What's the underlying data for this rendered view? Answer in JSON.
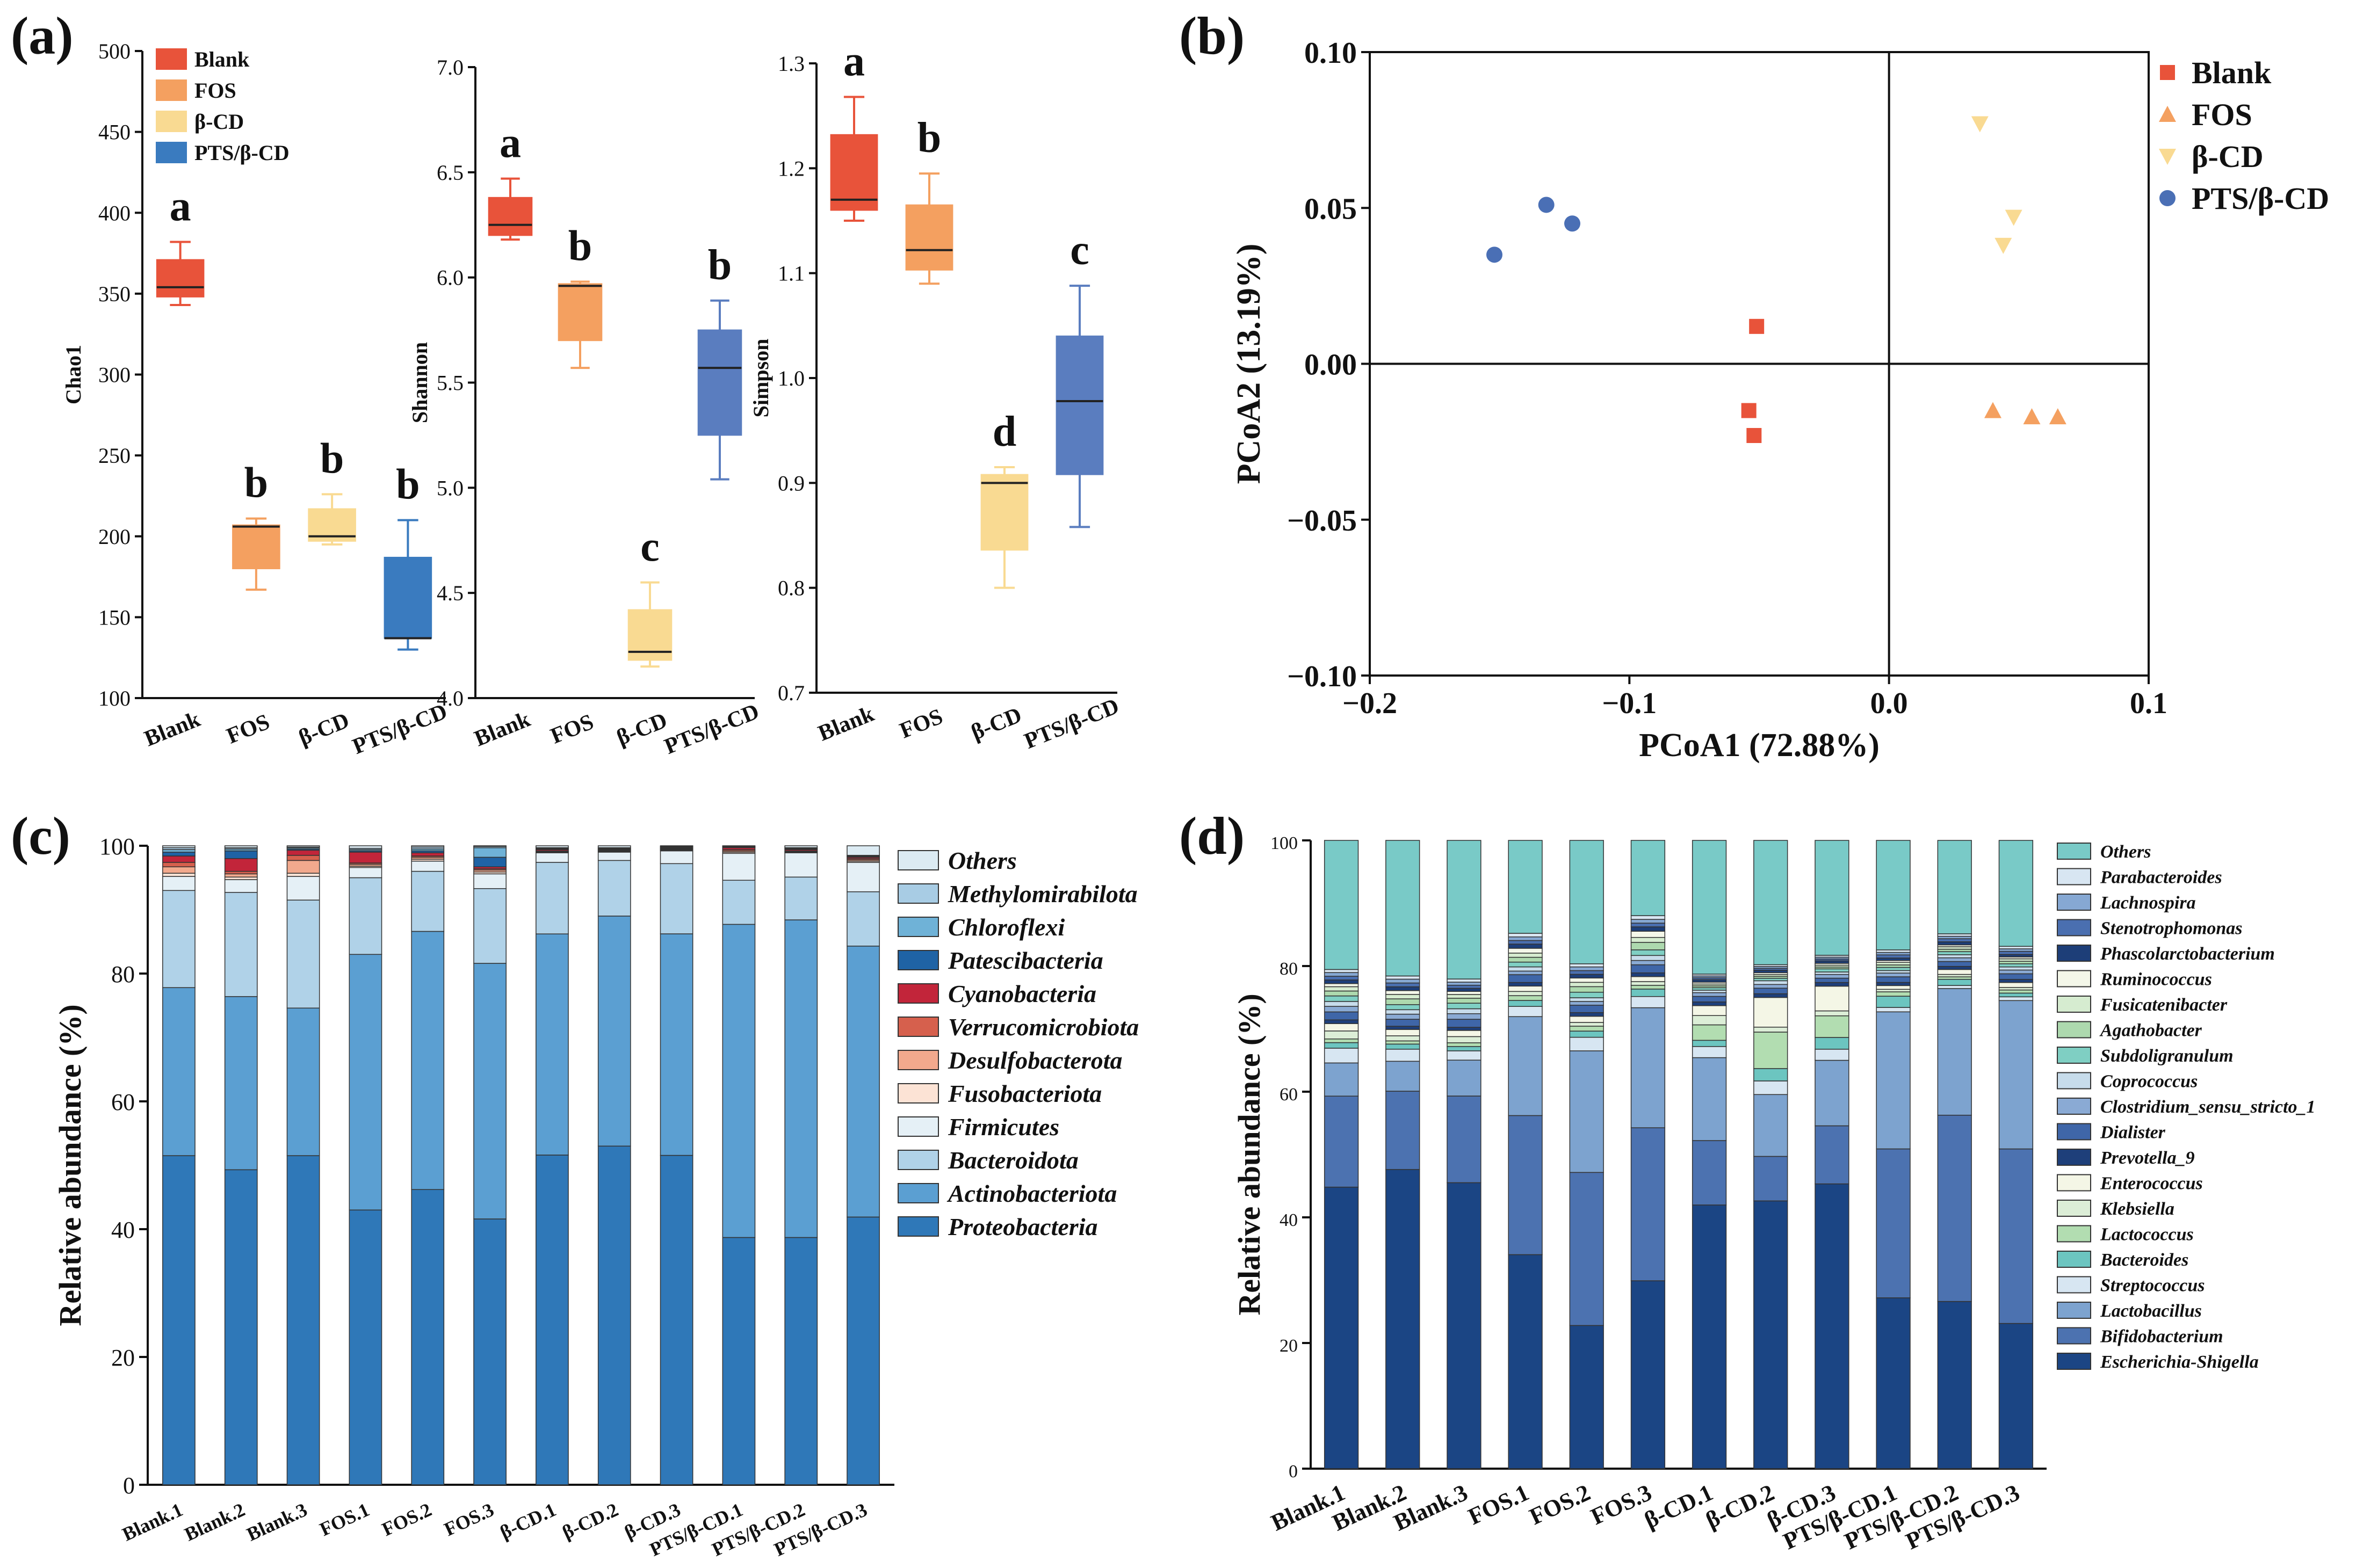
{
  "panel_labels": [
    "(a)",
    "(b)",
    "(c)",
    "(d)"
  ],
  "colors": {
    "Blank": "#E8533A",
    "FOS": "#F4A060",
    "b_CD": "#F9DA92",
    "PTS": "#3A7BBF",
    "PTS_shannon": "#5A7DBF"
  },
  "chart_data": [
    {
      "id": "a",
      "type": "box",
      "title": "(a)",
      "groups": [
        "Blank",
        "FOS",
        "β-CD",
        "PTS/β-CD"
      ],
      "legend": [
        "Blank",
        "FOS",
        "β-CD",
        "PTS/β-CD"
      ],
      "subplots": [
        {
          "ylabel": "Chao1",
          "ylim": [
            100,
            500
          ],
          "yticks": [
            100,
            150,
            200,
            250,
            300,
            350,
            400,
            450,
            500
          ],
          "boxes": [
            {
              "group": "Blank",
              "min": 343,
              "q1": 348,
              "median": 354,
              "q3": 371,
              "max": 382,
              "letter": "a"
            },
            {
              "group": "FOS",
              "min": 167,
              "q1": 180,
              "median": 206,
              "q3": 207,
              "max": 211,
              "letter": "b"
            },
            {
              "group": "β-CD",
              "min": 195,
              "q1": 197,
              "median": 200,
              "q3": 217,
              "max": 226,
              "letter": "b"
            },
            {
              "group": "PTS/β-CD",
              "min": 130,
              "q1": 137,
              "median": 137,
              "q3": 187,
              "max": 210,
              "letter": "b"
            }
          ]
        },
        {
          "ylabel": "Shannon",
          "ylim": [
            4.0,
            7.0
          ],
          "yticks": [
            "4.0",
            "4.5",
            "5.0",
            "5.5",
            "6.0",
            "6.5",
            "7.0"
          ],
          "boxes": [
            {
              "group": "Blank",
              "min": 6.18,
              "q1": 6.2,
              "median": 6.25,
              "q3": 6.38,
              "max": 6.47,
              "letter": "a"
            },
            {
              "group": "FOS",
              "min": 5.57,
              "q1": 5.7,
              "median": 5.96,
              "q3": 5.97,
              "max": 5.98,
              "letter": "b"
            },
            {
              "group": "β-CD",
              "min": 4.15,
              "q1": 4.18,
              "median": 4.22,
              "q3": 4.42,
              "max": 4.55,
              "letter": "c"
            },
            {
              "group": "PTS/β-CD",
              "min": 5.04,
              "q1": 5.25,
              "median": 5.57,
              "q3": 5.75,
              "max": 5.89,
              "letter": "b"
            }
          ]
        },
        {
          "ylabel": "Simpson",
          "ylim": [
            0.7,
            1.3
          ],
          "yticks": [
            "0.7",
            "0.8",
            "0.9",
            "1.0",
            "1.1",
            "1.2",
            "1.3"
          ],
          "boxes": [
            {
              "group": "Blank",
              "min": 1.15,
              "q1": 1.16,
              "median": 1.17,
              "q3": 1.232,
              "max": 1.268,
              "letter": "a"
            },
            {
              "group": "FOS",
              "min": 1.09,
              "q1": 1.103,
              "median": 1.122,
              "q3": 1.165,
              "max": 1.195,
              "letter": "b"
            },
            {
              "group": "β-CD",
              "min": 0.8,
              "q1": 0.836,
              "median": 0.9,
              "q3": 0.908,
              "max": 0.915,
              "letter": "d"
            },
            {
              "group": "PTS/β-CD",
              "min": 0.858,
              "q1": 0.908,
              "median": 0.978,
              "q3": 1.04,
              "max": 1.088,
              "letter": "c"
            }
          ]
        }
      ]
    },
    {
      "id": "b",
      "type": "scatter",
      "title": "(b)",
      "xlabel": "PCoA1 (72.88%)",
      "ylabel": "PCoA2 (13.19%)",
      "xlim": [
        -0.2,
        0.1
      ],
      "ylim": [
        -0.1,
        0.1
      ],
      "xticks": [
        -0.2,
        -0.1,
        0.0,
        0.1
      ],
      "xtick_labels": [
        "−0.2",
        "−0.1",
        "0.0",
        "0.1"
      ],
      "yticks": [
        -0.1,
        -0.05,
        0.0,
        0.05,
        0.1
      ],
      "ytick_labels": [
        "−0.10",
        "−0.05",
        "0.00",
        "0.05",
        "0.10"
      ],
      "legend": [
        "Blank",
        "FOS",
        "β-CD",
        "PTS/β-CD"
      ],
      "series": [
        {
          "name": "Blank",
          "marker": "square",
          "points": [
            [
              -0.051,
              0.012
            ],
            [
              -0.054,
              -0.015
            ],
            [
              -0.052,
              -0.023
            ]
          ]
        },
        {
          "name": "FOS",
          "marker": "triangle-up",
          "points": [
            [
              0.04,
              -0.015
            ],
            [
              0.055,
              -0.017
            ],
            [
              0.065,
              -0.017
            ]
          ]
        },
        {
          "name": "β-CD",
          "marker": "triangle-down",
          "points": [
            [
              0.035,
              0.077
            ],
            [
              0.048,
              0.047
            ],
            [
              0.044,
              0.038
            ]
          ]
        },
        {
          "name": "PTS/β-CD",
          "marker": "circle",
          "points": [
            [
              -0.152,
              0.035
            ],
            [
              -0.132,
              0.051
            ],
            [
              -0.122,
              0.045
            ]
          ]
        }
      ]
    },
    {
      "id": "c",
      "type": "stacked-bar",
      "title": "(c)",
      "ylabel": "Relative abundance (%)",
      "ylim": [
        0,
        100
      ],
      "yticks": [
        0,
        20,
        40,
        60,
        80,
        100
      ],
      "categories": [
        "Blank.1",
        "Blank.2",
        "Blank.3",
        "FOS.1",
        "FOS.2",
        "FOS.3",
        "β-CD.1",
        "β-CD.2",
        "β-CD.3",
        "PTS/β-CD.1",
        "PTS/β-CD.2",
        "PTS/β-CD.3"
      ],
      "series": [
        {
          "name": "Proteobacteria",
          "color": "#2F78B8",
          "values": [
            51.5,
            49.3,
            51.5,
            43,
            46.2,
            41.6,
            51.6,
            53,
            51.6,
            38.7,
            38.7,
            41.9
          ]
        },
        {
          "name": "Actinobacteriota",
          "color": "#5B9FD2",
          "values": [
            26.3,
            27.1,
            23.1,
            40,
            40.4,
            40,
            34.6,
            36,
            34.7,
            49,
            49.7,
            42.4
          ]
        },
        {
          "name": "Bacteroidota",
          "color": "#B0D2E8",
          "values": [
            15.2,
            16.3,
            16.9,
            12,
            9.4,
            11.7,
            11.2,
            8.7,
            11,
            6.9,
            6.7,
            8.5
          ]
        },
        {
          "name": "Firmicutes",
          "color": "#E5F0F6",
          "values": [
            2.2,
            2,
            3.7,
            1.6,
            1.6,
            2.3,
            1.5,
            1.3,
            2,
            4.2,
            3.8,
            4.6
          ]
        },
        {
          "name": "Fusobacteriota",
          "color": "#FCE3D5",
          "values": [
            0.5,
            0.4,
            0.5,
            0.2,
            0.3,
            0.3,
            0.1,
            0.1,
            0.1,
            0.2,
            0.1,
            0.2
          ]
        },
        {
          "name": "Desulfobacterota",
          "color": "#F2A98D",
          "values": [
            1,
            0.5,
            2,
            0.3,
            0.3,
            0.3,
            0.1,
            0.1,
            0.1,
            0.2,
            0.1,
            0.2
          ]
        },
        {
          "name": "Verrucomicrobiota",
          "color": "#D6604D",
          "values": [
            0.7,
            0.4,
            0.8,
            0.2,
            0.2,
            0.2,
            0.1,
            0.1,
            0.1,
            0.2,
            0.1,
            0.2
          ]
        },
        {
          "name": "Cyanobacteria",
          "color": "#C2253A",
          "values": [
            1,
            2,
            0.8,
            1.7,
            0.5,
            0.3,
            0.2,
            0.1,
            0.1,
            0.3,
            0.2,
            0.2
          ]
        },
        {
          "name": "Patescibacteria",
          "color": "#1F63A5",
          "values": [
            0.6,
            1.2,
            0.2,
            0.2,
            0.3,
            1.5,
            0.1,
            0.1,
            0.1,
            0.1,
            0.1,
            0.1
          ]
        },
        {
          "name": "Chloroflexi",
          "color": "#6FB2D7",
          "values": [
            0.4,
            0.3,
            0.2,
            0.2,
            0.3,
            1.5,
            0.1,
            0.1,
            0.1,
            0.1,
            0.1,
            0.1
          ]
        },
        {
          "name": "Methylomirabilota",
          "color": "#A8CCE4",
          "values": [
            0.3,
            0.2,
            0.1,
            0.2,
            0.3,
            0.2,
            0.1,
            0.1,
            0.1,
            0.1,
            0.1,
            0.1
          ]
        },
        {
          "name": "Others",
          "color": "#DCEBF3",
          "values": [
            0.3,
            0.3,
            0.2,
            0.4,
            0.2,
            0.1,
            0.3,
            0.3,
            0.1,
            0.0,
            0.3,
            1.5
          ]
        }
      ]
    },
    {
      "id": "d",
      "type": "stacked-bar",
      "title": "(d)",
      "ylabel": "Relative abundance (%)",
      "ylim": [
        0,
        100
      ],
      "yticks": [
        0,
        20,
        40,
        60,
        80,
        100
      ],
      "categories": [
        "Blank.1",
        "Blank.2",
        "Blank.3",
        "FOS.1",
        "FOS.2",
        "FOS.3",
        "β-CD.1",
        "β-CD.2",
        "β-CD.3",
        "PTS/β-CD.1",
        "PTS/β-CD.2",
        "PTS/β-CD.3"
      ],
      "series": [
        {
          "name": "Escherichia-Shigella",
          "color": "#1B4584",
          "values": [
            45.8,
            47,
            46.2,
            35.7,
            23.2,
            30.2,
            42.6,
            43.3,
            46.1,
            27.3,
            27.2,
            23.3
          ]
        },
        {
          "name": "Bifidobacterium",
          "color": "#4C72B0",
          "values": [
            14.8,
            12.3,
            14,
            23.2,
            24.8,
            24.6,
            10.4,
            7.2,
            9.4,
            23.8,
            30.3,
            28
          ]
        },
        {
          "name": "Lactobacillus",
          "color": "#7DA3CF",
          "values": [
            5.4,
            4.7,
            5.8,
            16.5,
            19.7,
            19.3,
            13.4,
            10,
            10.6,
            21.9,
            20.6,
            23.8
          ]
        },
        {
          "name": "Streptococcus",
          "color": "#D7E6F2",
          "values": [
            2.4,
            1.9,
            1.5,
            1.7,
            2.2,
            1.8,
            1.8,
            2.2,
            1.8,
            0.7,
            0.5,
            0.6
          ]
        },
        {
          "name": "Bacteroides",
          "color": "#6CC5C0",
          "values": [
            0.9,
            0.8,
            0.7,
            1.0,
            1.0,
            1.2,
            1.0,
            2.0,
            1.9,
            1.8,
            1.0,
            0.6
          ]
        },
        {
          "name": "Lactococcus",
          "color": "#B2DDB1",
          "values": [
            0.6,
            0.5,
            0.6,
            0.8,
            0.8,
            0.6,
            2.5,
            5.9,
            3.5,
            0.7,
            0.4,
            0.5
          ]
        },
        {
          "name": "Klebsiella",
          "color": "#DCEED7",
          "values": [
            1.3,
            0.8,
            1.0,
            0.7,
            0.6,
            0.6,
            1.5,
            0.8,
            0.8,
            0.4,
            0.4,
            0.4
          ]
        },
        {
          "name": "Enterococcus",
          "color": "#F4F6E6",
          "values": [
            1.2,
            1.0,
            1.0,
            0.9,
            1.0,
            0.8,
            1.6,
            4.8,
            4.0,
            0.6,
            0.8,
            0.8
          ]
        },
        {
          "name": "Prevotella_9",
          "color": "#1E3F7A",
          "values": [
            0.6,
            0.5,
            0.5,
            0.6,
            0.6,
            0.6,
            0.6,
            0.6,
            0.6,
            0.5,
            0.5,
            0.5
          ]
        },
        {
          "name": "Dialister",
          "color": "#3F66A8",
          "values": [
            1.3,
            1.1,
            1.3,
            1.3,
            1.2,
            1.3,
            0.9,
            0.9,
            0.7,
            0.9,
            0.8,
            0.9
          ]
        },
        {
          "name": "Clostridium_sensu_stricto_1",
          "color": "#8AAAD4",
          "values": [
            0.9,
            0.8,
            0.9,
            0.6,
            0.6,
            0.7,
            0.6,
            0.6,
            0.6,
            0.6,
            0.6,
            0.6
          ]
        },
        {
          "name": "Coprococcus",
          "color": "#C7DCEB",
          "values": [
            0.8,
            0.7,
            0.8,
            0.7,
            0.6,
            0.8,
            0.4,
            0.6,
            0.4,
            0.4,
            0.5,
            0.5
          ]
        },
        {
          "name": "Subdoligranulum",
          "color": "#7FCFC3",
          "values": [
            0.9,
            0.8,
            0.9,
            0.8,
            0.9,
            0.9,
            0.4,
            0.4,
            0.5,
            0.5,
            0.5,
            0.5
          ]
        },
        {
          "name": "Agathobacter",
          "color": "#ADD9AE",
          "values": [
            0.8,
            0.9,
            0.8,
            0.8,
            0.9,
            1.2,
            0.3,
            0.3,
            0.3,
            0.4,
            0.4,
            0.4
          ]
        },
        {
          "name": "Fusicatenibacter",
          "color": "#D6ECD0",
          "values": [
            0.7,
            0.7,
            0.6,
            0.7,
            0.7,
            0.8,
            0.3,
            0.3,
            0.3,
            0.4,
            0.4,
            0.4
          ]
        },
        {
          "name": "Ruminococcus",
          "color": "#F4F7E9",
          "values": [
            0.5,
            0.6,
            0.5,
            0.8,
            0.7,
            1.0,
            0.3,
            0.3,
            0.3,
            0.3,
            0.3,
            0.3
          ]
        },
        {
          "name": "Phascolarctobacterium",
          "color": "#1D3E78",
          "values": [
            0.6,
            0.6,
            0.5,
            0.7,
            0.6,
            0.7,
            0.4,
            0.4,
            0.4,
            0.4,
            0.5,
            0.4
          ]
        },
        {
          "name": "Stenotrophomonas",
          "color": "#4A6FB0",
          "values": [
            0.6,
            0.6,
            0.5,
            0.6,
            0.6,
            0.6,
            0.3,
            0.3,
            0.3,
            0.5,
            0.5,
            0.5
          ]
        },
        {
          "name": "Lachnospira",
          "color": "#86A8D3",
          "values": [
            0.6,
            0.6,
            0.5,
            0.6,
            0.6,
            0.6,
            0.3,
            0.3,
            0.3,
            0.4,
            0.4,
            0.4
          ]
        },
        {
          "name": "Parabacteroides",
          "color": "#D8E6F2",
          "values": [
            0.5,
            0.5,
            0.5,
            0.6,
            0.5,
            0.6,
            0.3,
            0.3,
            0.3,
            0.4,
            0.4,
            0.4
          ]
        },
        {
          "name": "Others",
          "color": "#79CAC7",
          "values": [
            21,
            21.3,
            22.4,
            15.5,
            20,
            12.1,
            21.6,
            20.1,
            18.6,
            17.5,
            15.2,
            17
          ]
        }
      ]
    }
  ]
}
